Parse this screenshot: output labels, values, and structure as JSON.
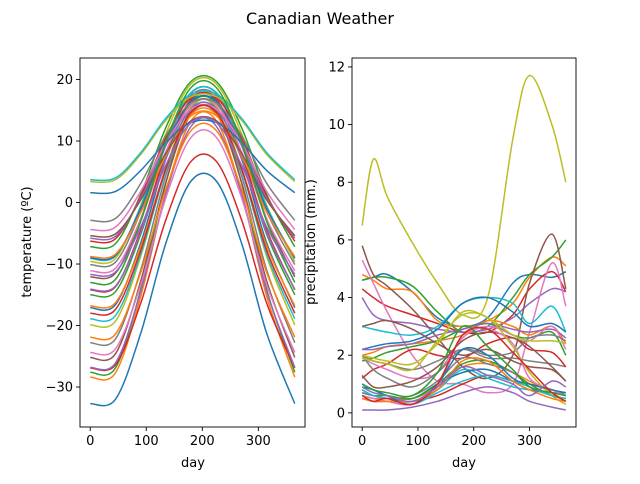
{
  "figure": {
    "title": "Canadian Weather"
  },
  "color_cycle": [
    "#1f77b4",
    "#ff7f0e",
    "#2ca02c",
    "#d62728",
    "#9467bd",
    "#8c564b",
    "#e377c2",
    "#7f7f7f",
    "#bcbd22",
    "#17becf"
  ],
  "chart_data": [
    {
      "type": "line",
      "xlabel": "day",
      "ylabel": "temperature (ºC)",
      "xlim": [
        -18.25,
        383.25
      ],
      "ylim": [
        -36.5,
        23.5
      ],
      "xticks": [
        0,
        100,
        200,
        300
      ],
      "yticks": [
        -30,
        -20,
        -10,
        0,
        10,
        20
      ],
      "grid": false,
      "x": [
        0,
        45,
        90,
        135,
        180,
        225,
        270,
        315,
        365
      ],
      "series": [
        {
          "values": [
            -32.7,
            -32.0,
            -21.3,
            -6.6,
            3.5,
            3.5,
            -6.6,
            -21.3,
            -32.7
          ]
        },
        {
          "values": [
            -28.4,
            -27.7,
            -15.3,
            1.6,
            13.3,
            13.3,
            1.6,
            -15.3,
            -28.4
          ]
        },
        {
          "values": [
            -27.6,
            -26.9,
            -14.2,
            3.2,
            15.3,
            15.3,
            3.2,
            -14.2,
            -27.6
          ]
        },
        {
          "values": [
            -26.9,
            -26.4,
            -16.4,
            -2.8,
            6.7,
            6.7,
            -2.8,
            -16.4,
            -26.9
          ]
        },
        {
          "values": [
            -26.8,
            -26.1,
            -14.5,
            1.4,
            12.4,
            12.4,
            1.4,
            -14.5,
            -26.8
          ]
        },
        {
          "values": [
            -25.2,
            -24.6,
            -12.8,
            3.3,
            14.4,
            14.4,
            3.3,
            -12.8,
            -25.2
          ]
        },
        {
          "values": [
            -24.4,
            -23.8,
            -13.4,
            0.8,
            10.6,
            10.6,
            0.8,
            -13.4,
            -24.4
          ]
        },
        {
          "values": [
            -22.8,
            -22.2,
            -11.0,
            4.4,
            15.0,
            15.0,
            4.4,
            -11.0,
            -22.8
          ]
        },
        {
          "values": [
            -19.9,
            -19.3,
            -8.8,
            5.6,
            15.6,
            15.6,
            5.6,
            -8.8,
            -19.9
          ]
        },
        {
          "values": [
            -18.9,
            -18.4,
            -8.4,
            5.2,
            14.7,
            14.7,
            5.2,
            -8.4,
            -18.9
          ]
        },
        {
          "values": [
            -17.1,
            -16.6,
            -6.6,
            7.1,
            16.6,
            16.6,
            7.1,
            -6.6,
            -17.1
          ]
        },
        {
          "values": [
            -16.8,
            -16.3,
            -7.1,
            5.5,
            14.3,
            14.3,
            5.5,
            -7.1,
            -16.8
          ]
        },
        {
          "values": [
            -15.0,
            -14.5,
            -5.2,
            7.5,
            16.2,
            16.2,
            7.5,
            -5.2,
            -15.0
          ]
        },
        {
          "values": [
            -14.2,
            -13.7,
            -4.5,
            8.0,
            16.8,
            16.8,
            8.0,
            -4.5,
            -14.2
          ]
        },
        {
          "values": [
            -14.1,
            -13.6,
            -4.9,
            7.1,
            15.3,
            15.3,
            7.1,
            -4.9,
            -14.1
          ]
        },
        {
          "values": [
            -12.1,
            -11.5,
            -2.7,
            9.4,
            17.8,
            17.8,
            9.4,
            -2.7,
            -12.1
          ]
        },
        {
          "values": [
            -11.1,
            -10.7,
            -2.7,
            8.3,
            15.9,
            15.9,
            8.3,
            -2.7,
            -11.1
          ]
        },
        {
          "values": [
            -10.1,
            -9.7,
            -1.5,
            9.7,
            17.4,
            17.4,
            9.7,
            -1.5,
            -10.1
          ]
        },
        {
          "values": [
            -9.6,
            -9.1,
            -0.5,
            11.2,
            19.3,
            19.3,
            11.2,
            -0.5,
            -9.6
          ]
        },
        {
          "values": [
            -9.1,
            -8.7,
            -0.7,
            10.3,
            17.9,
            17.9,
            10.3,
            -0.7,
            -9.1
          ]
        },
        {
          "values": [
            -9.0,
            -8.6,
            -1.0,
            9.3,
            16.5,
            16.5,
            9.3,
            -1.0,
            -9.0
          ]
        },
        {
          "values": [
            -8.8,
            -8.4,
            -1.6,
            7.7,
            14.1,
            14.1,
            7.7,
            -1.6,
            -8.8
          ]
        },
        {
          "values": [
            -7.2,
            -6.7,
            1.3,
            12.2,
            19.7,
            19.7,
            12.2,
            1.3,
            -7.2
          ]
        },
        {
          "values": [
            -6.3,
            -5.9,
            1.0,
            10.5,
            17.1,
            17.1,
            10.5,
            1.0,
            -6.3
          ]
        },
        {
          "values": [
            -5.8,
            -5.5,
            0.7,
            9.3,
            15.2,
            15.2,
            9.3,
            0.7,
            -5.8
          ]
        },
        {
          "values": [
            -5.4,
            -5.1,
            0.4,
            8.0,
            13.3,
            13.3,
            8.0,
            0.4,
            -5.4
          ]
        },
        {
          "values": [
            -4.4,
            -4.0,
            1.8,
            9.7,
            15.2,
            15.2,
            9.7,
            1.8,
            -4.4
          ]
        },
        {
          "values": [
            -2.9,
            -2.6,
            3.1,
            10.9,
            16.2,
            16.2,
            10.9,
            3.1,
            -2.9
          ]
        },
        {
          "values": [
            3.4,
            3.7,
            7.8,
            13.4,
            17.2,
            17.2,
            13.4,
            7.8,
            3.4
          ]
        },
        {
          "values": [
            3.7,
            4.0,
            8.1,
            13.7,
            17.6,
            17.6,
            13.7,
            8.1,
            3.7
          ]
        },
        {
          "values": [
            1.6,
            1.8,
            5.2,
            9.8,
            13.0,
            13.0,
            9.8,
            5.2,
            1.6
          ]
        },
        {
          "values": [
            -21.9,
            -21.4,
            -11.4,
            2.2,
            11.7,
            11.7,
            2.2,
            -11.4,
            -21.9
          ]
        },
        {
          "values": [
            -13.0,
            -12.5,
            -3.1,
            9.8,
            18.7,
            18.7,
            9.8,
            -3.1,
            -13.0
          ]
        },
        {
          "values": [
            -18.0,
            -17.4,
            -7.8,
            5.5,
            14.7,
            14.7,
            5.5,
            -7.8,
            -18.0
          ]
        },
        {
          "values": [
            -11.7,
            -11.3,
            -4.0,
            6.1,
            13.0,
            13.0,
            6.1,
            -4.0,
            -11.7
          ]
        }
      ]
    },
    {
      "type": "line",
      "xlabel": "day",
      "ylabel": "precipitation (mm.)",
      "xlim": [
        -18.25,
        383.25
      ],
      "ylim": [
        -0.49,
        12.31
      ],
      "xticks": [
        0,
        100,
        200,
        300
      ],
      "yticks": [
        0,
        2,
        4,
        6,
        8,
        10,
        12
      ],
      "grid": false,
      "x": [
        0,
        20,
        45,
        90,
        135,
        180,
        225,
        270,
        300,
        340,
        365
      ],
      "series": [
        {
          "values": [
            4.6,
            4.7,
            4.8,
            4.2,
            3.3,
            3.0,
            3.3,
            4.5,
            4.8,
            4.7,
            4.9
          ]
        },
        {
          "values": [
            4.8,
            4.6,
            4.3,
            4.2,
            3.2,
            3.0,
            3.2,
            3.8,
            4.7,
            5.4,
            5.1
          ]
        },
        {
          "values": [
            4.6,
            4.7,
            4.7,
            4.4,
            3.5,
            2.8,
            3.0,
            4.0,
            4.8,
            5.4,
            6.0
          ]
        },
        {
          "values": [
            4.3,
            4.0,
            3.7,
            3.4,
            3.1,
            2.8,
            2.8,
            3.4,
            4.3,
            4.9,
            4.2
          ]
        },
        {
          "values": [
            4.0,
            3.4,
            3.2,
            3.1,
            2.9,
            2.8,
            2.9,
            3.3,
            3.8,
            4.3,
            4.2
          ]
        },
        {
          "values": [
            5.8,
            4.8,
            4.4,
            3.6,
            2.6,
            1.6,
            1.2,
            2.0,
            4.5,
            6.2,
            4.3
          ]
        },
        {
          "values": [
            5.3,
            4.5,
            3.5,
            2.0,
            1.1,
            1.0,
            0.7,
            1.0,
            2.8,
            5.2,
            3.7
          ]
        },
        {
          "values": [
            2.0,
            1.8,
            1.7,
            1.5,
            1.8,
            2.2,
            1.9,
            1.9,
            1.8,
            1.7,
            1.6
          ]
        },
        {
          "values": [
            6.5,
            8.8,
            7.5,
            5.9,
            4.5,
            3.4,
            4.0,
            9.5,
            11.7,
            10.0,
            8.0
          ]
        },
        {
          "values": [
            3.0,
            2.9,
            2.8,
            2.7,
            3.0,
            3.8,
            4.0,
            3.8,
            3.1,
            3.7,
            2.8
          ]
        },
        {
          "values": [
            2.2,
            2.3,
            2.4,
            2.5,
            2.9,
            3.8,
            4.0,
            3.5,
            3.0,
            3.1,
            2.8
          ]
        },
        {
          "values": [
            2.0,
            2.1,
            2.3,
            2.4,
            2.5,
            2.7,
            3.2,
            3.0,
            2.7,
            3.0,
            2.4
          ]
        },
        {
          "values": [
            1.8,
            1.9,
            2.1,
            2.3,
            2.5,
            2.9,
            3.1,
            2.7,
            2.6,
            2.8,
            2.0
          ]
        },
        {
          "values": [
            1.2,
            1.5,
            1.7,
            2.2,
            2.0,
            1.9,
            2.4,
            2.6,
            2.2,
            2.1,
            1.6
          ]
        },
        {
          "values": [
            2.2,
            2.2,
            2.3,
            2.4,
            2.7,
            2.9,
            3.1,
            2.9,
            2.8,
            2.9,
            2.6
          ]
        },
        {
          "values": [
            3.0,
            3.1,
            3.2,
            2.9,
            2.4,
            2.0,
            2.2,
            1.8,
            1.6,
            1.5,
            1.1
          ]
        },
        {
          "values": [
            1.9,
            1.7,
            1.5,
            1.2,
            1.4,
            2.6,
            3.0,
            2.7,
            2.5,
            3.0,
            2.2
          ]
        },
        {
          "values": [
            2.0,
            1.5,
            1.2,
            0.9,
            1.4,
            2.2,
            2.0,
            2.1,
            2.6,
            2.7,
            2.5
          ]
        },
        {
          "values": [
            2.0,
            1.9,
            1.8,
            1.7,
            2.4,
            3.5,
            3.3,
            2.7,
            2.5,
            2.5,
            2.4
          ]
        },
        {
          "values": [
            0.8,
            0.6,
            0.5,
            0.4,
            0.8,
            1.5,
            1.2,
            0.9,
            0.8,
            0.7,
            0.6
          ]
        },
        {
          "values": [
            0.9,
            0.8,
            0.6,
            0.5,
            1.0,
            1.4,
            1.5,
            1.1,
            0.8,
            0.7,
            0.7
          ]
        },
        {
          "values": [
            0.6,
            0.5,
            0.5,
            0.5,
            0.9,
            1.6,
            1.7,
            1.4,
            1.1,
            0.7,
            0.4
          ]
        },
        {
          "values": [
            0.7,
            0.6,
            0.6,
            0.5,
            1.0,
            1.7,
            1.8,
            1.4,
            1.0,
            0.6,
            0.5
          ]
        },
        {
          "values": [
            0.5,
            0.4,
            0.4,
            0.4,
            0.6,
            1.0,
            1.3,
            1.1,
            1.0,
            0.8,
            0.6
          ]
        },
        {
          "values": [
            0.1,
            0.1,
            0.1,
            0.2,
            0.4,
            0.7,
            0.9,
            0.7,
            0.4,
            0.2,
            0.1
          ]
        },
        {
          "values": [
            1.3,
            0.9,
            0.9,
            1.1,
            1.6,
            2.5,
            2.8,
            2.6,
            2.3,
            1.6,
            1.1
          ]
        },
        {
          "values": [
            0.6,
            0.5,
            0.4,
            0.3,
            0.9,
            2.7,
            2.9,
            2.4,
            1.2,
            0.8,
            0.6
          ]
        },
        {
          "values": [
            0.7,
            0.6,
            0.5,
            0.6,
            1.1,
            1.9,
            1.7,
            1.4,
            0.9,
            0.6,
            0.5
          ]
        },
        {
          "values": [
            1.9,
            1.8,
            1.7,
            1.5,
            2.5,
            3.4,
            3.3,
            2.3,
            1.4,
            0.6,
            0.3
          ]
        },
        {
          "values": [
            0.8,
            0.6,
            0.5,
            0.3,
            0.7,
            1.1,
            1.3,
            1.1,
            0.9,
            0.6,
            0.5
          ]
        },
        {
          "values": [
            1.0,
            0.8,
            0.6,
            0.3,
            1.0,
            2.2,
            2.0,
            1.2,
            1.0,
            0.8,
            0.7
          ]
        },
        {
          "values": [
            0.5,
            0.4,
            0.4,
            0.4,
            0.8,
            1.8,
            1.8,
            1.1,
            0.8,
            0.5,
            0.4
          ]
        },
        {
          "values": [
            1.0,
            0.8,
            0.7,
            0.6,
            1.4,
            3.0,
            2.3,
            1.5,
            0.9,
            0.7,
            0.6
          ]
        },
        {
          "values": [
            0.6,
            0.4,
            0.5,
            0.3,
            1.0,
            2.7,
            2.9,
            2.1,
            1.5,
            0.7,
            0.4
          ]
        },
        {
          "values": [
            0.9,
            0.7,
            0.6,
            0.4,
            0.9,
            1.6,
            1.3,
            1.0,
            0.6,
            1.1,
            0.9
          ]
        }
      ]
    }
  ]
}
